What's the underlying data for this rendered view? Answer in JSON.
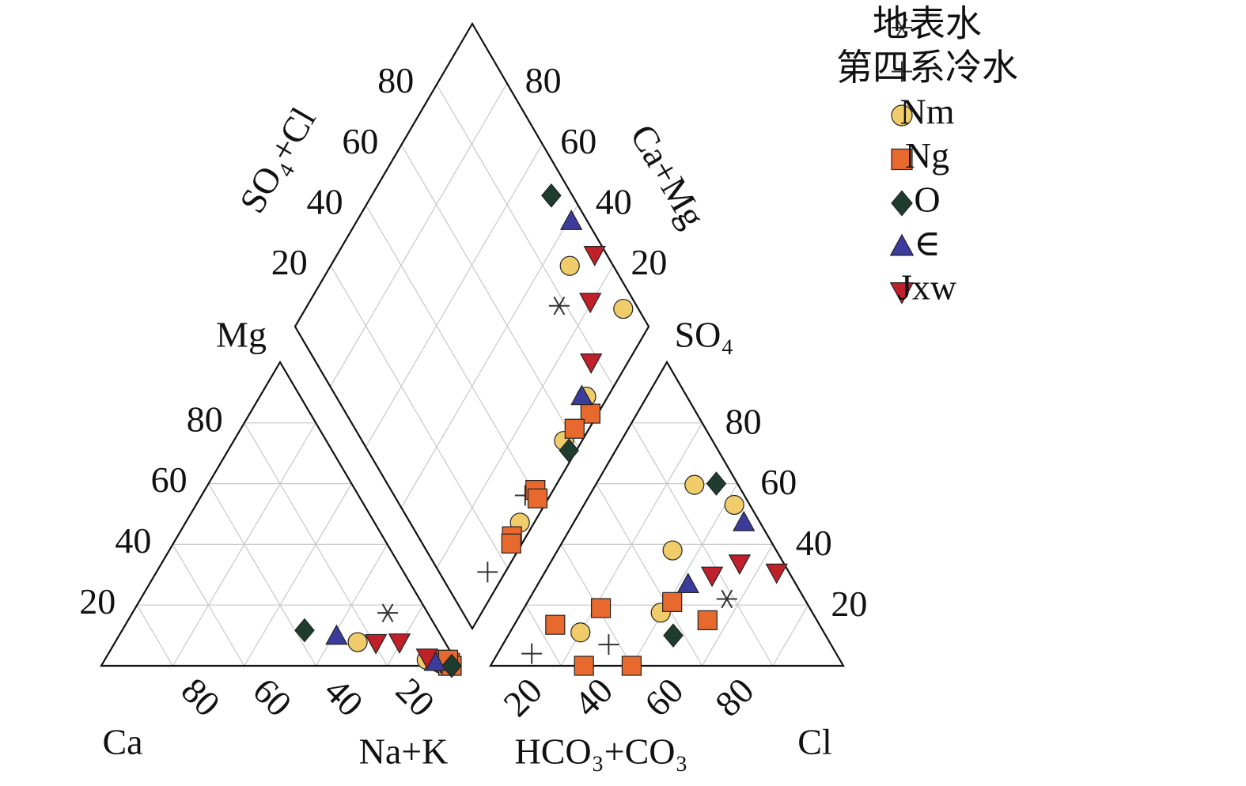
{
  "chart_data": {
    "type": "piper",
    "ticks": [
      20,
      40,
      60,
      80
    ],
    "grid": true,
    "axis_labels": {
      "Mg": "Mg",
      "Ca": "Ca",
      "NaK": "Na+K",
      "SO4": "SO₄",
      "HCO3": "HCO₃+CO₃",
      "Cl": "Cl",
      "SO4Cl": "SO₄+Cl",
      "CaMg": "Ca+Mg"
    },
    "legend": "top-right",
    "series": [
      {
        "name": "地表水",
        "marker": "asterisk",
        "color": "#333333",
        "cations": [
          [
            17.4,
            71.4
          ]
        ],
        "anions": [
          [
            22,
            56
          ]
        ]
      },
      {
        "name": "第四系冷水",
        "marker": "plus",
        "color": "#333333",
        "cations": [
          [
            1,
            95
          ],
          [
            2,
            93
          ]
        ],
        "anions": [
          [
            4,
            9.7
          ],
          [
            7,
            30
          ]
        ]
      },
      {
        "name": "Nm",
        "marker": "circle",
        "color": "#f0cd6a",
        "cations": [
          [
            7.8,
            67.8
          ],
          [
            2,
            90
          ],
          [
            1,
            94
          ],
          [
            1,
            95
          ],
          [
            0,
            96
          ]
        ],
        "anions": [
          [
            59.6,
            28
          ],
          [
            53,
            42.6
          ],
          [
            38,
            32.6
          ],
          [
            17.5,
            39.5
          ],
          [
            11,
            20
          ]
        ]
      },
      {
        "name": "Ng",
        "marker": "square",
        "color": "#e8692e",
        "cations": [
          [
            2,
            95
          ],
          [
            1,
            96
          ],
          [
            0,
            97
          ],
          [
            1,
            97
          ],
          [
            0,
            98
          ],
          [
            2,
            96
          ]
        ],
        "anions": [
          [
            19,
            21.8
          ],
          [
            0,
            26.5
          ],
          [
            0,
            40
          ],
          [
            13.5,
            11.6
          ],
          [
            15,
            54
          ],
          [
            21,
            41
          ]
        ]
      },
      {
        "name": "O",
        "marker": "diamond",
        "color": "#1e3d2e",
        "cations": [
          [
            11.7,
            51
          ],
          [
            0,
            98
          ]
        ],
        "anions": [
          [
            60,
            34
          ],
          [
            10,
            46.8
          ]
        ]
      },
      {
        "name": "∈",
        "marker": "triangle",
        "color": "#3b3c9c",
        "cations": [
          [
            9.6,
            61
          ],
          [
            1,
            92.8
          ]
        ],
        "anions": [
          [
            47,
            48.3
          ],
          [
            26.6,
            42.7
          ]
        ]
      },
      {
        "name": "Jxw",
        "marker": "triangle-down",
        "color": "#c0202a",
        "cations": [
          [
            7.8,
            72.9
          ],
          [
            8,
            79.4
          ],
          [
            3,
            89.6
          ]
        ],
        "anions": [
          [
            31,
            65.6
          ],
          [
            34,
            53.6
          ],
          [
            30,
            47.8
          ]
        ]
      }
    ]
  }
}
